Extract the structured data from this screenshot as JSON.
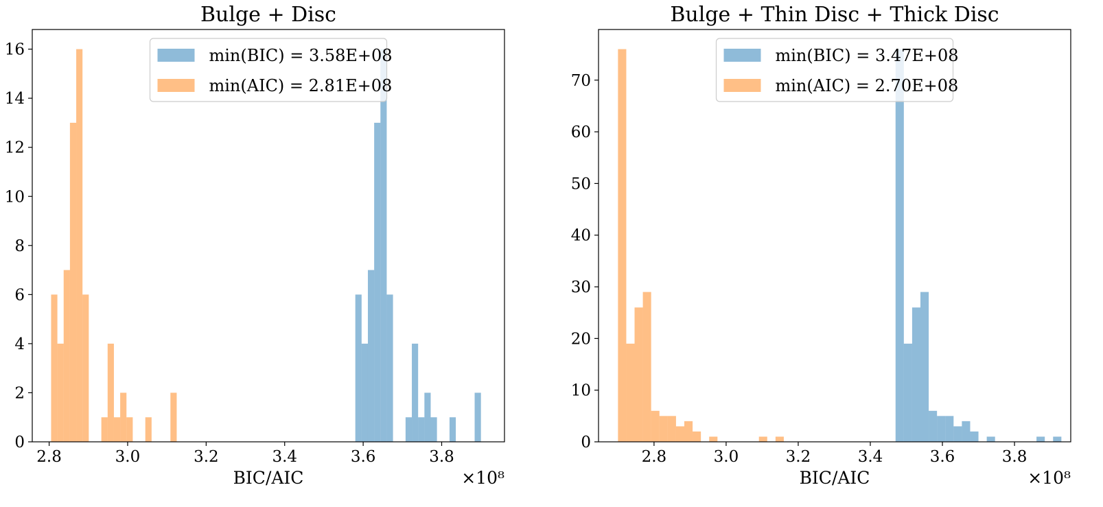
{
  "chart_data": [
    {
      "type": "bar",
      "title": "Bulge + Disc",
      "xlabel": "BIC/AIC",
      "ylabel": "",
      "x_scale_label": "×10⁸",
      "xlim": [
        2.757,
        3.96
      ],
      "ylim": [
        0,
        16.8
      ],
      "xticks": [
        2.8,
        3.0,
        3.2,
        3.4,
        3.6,
        3.8
      ],
      "xtick_labels": [
        "2.8",
        "3.0",
        "3.2",
        "3.4",
        "3.6",
        "3.8"
      ],
      "yticks": [
        0,
        2,
        4,
        6,
        8,
        10,
        12,
        14,
        16
      ],
      "ytick_labels": [
        "0",
        "2",
        "4",
        "6",
        "8",
        "10",
        "12",
        "14",
        "16"
      ],
      "legend_position": "top-center",
      "series": [
        {
          "name": "min(BIC) = 3.58E+08",
          "color": "#1f77b4",
          "opacity": 0.5,
          "bins": [
            {
              "x0": 3.58,
              "x1": 3.596,
              "count": 6
            },
            {
              "x0": 3.596,
              "x1": 3.612,
              "count": 4
            },
            {
              "x0": 3.612,
              "x1": 3.628,
              "count": 7
            },
            {
              "x0": 3.628,
              "x1": 3.644,
              "count": 13
            },
            {
              "x0": 3.644,
              "x1": 3.66,
              "count": 16
            },
            {
              "x0": 3.66,
              "x1": 3.676,
              "count": 6
            },
            {
              "x0": 3.708,
              "x1": 3.724,
              "count": 1
            },
            {
              "x0": 3.724,
              "x1": 3.74,
              "count": 4
            },
            {
              "x0": 3.74,
              "x1": 3.756,
              "count": 1
            },
            {
              "x0": 3.756,
              "x1": 3.772,
              "count": 2
            },
            {
              "x0": 3.772,
              "x1": 3.788,
              "count": 1
            },
            {
              "x0": 3.82,
              "x1": 3.836,
              "count": 1
            },
            {
              "x0": 3.884,
              "x1": 3.9,
              "count": 2
            }
          ]
        },
        {
          "name": "min(AIC) = 2.81E+08",
          "color": "#ff7f0e",
          "opacity": 0.5,
          "bins": [
            {
              "x0": 2.805,
              "x1": 2.821,
              "count": 6
            },
            {
              "x0": 2.821,
              "x1": 2.837,
              "count": 4
            },
            {
              "x0": 2.837,
              "x1": 2.853,
              "count": 7
            },
            {
              "x0": 2.853,
              "x1": 2.869,
              "count": 13
            },
            {
              "x0": 2.869,
              "x1": 2.885,
              "count": 16
            },
            {
              "x0": 2.885,
              "x1": 2.901,
              "count": 6
            },
            {
              "x0": 2.933,
              "x1": 2.949,
              "count": 1
            },
            {
              "x0": 2.949,
              "x1": 2.965,
              "count": 4
            },
            {
              "x0": 2.965,
              "x1": 2.981,
              "count": 1
            },
            {
              "x0": 2.981,
              "x1": 2.997,
              "count": 2
            },
            {
              "x0": 2.997,
              "x1": 3.013,
              "count": 1
            },
            {
              "x0": 3.045,
              "x1": 3.061,
              "count": 1
            },
            {
              "x0": 3.109,
              "x1": 3.125,
              "count": 2
            }
          ]
        }
      ]
    },
    {
      "type": "bar",
      "title": "Bulge + Thin Disc + Thick Disc",
      "xlabel": "BIC/AIC",
      "ylabel": "",
      "x_scale_label": "×10⁸",
      "xlim": [
        2.646,
        3.956
      ],
      "ylim": [
        0,
        79.8
      ],
      "xticks": [
        2.8,
        3.0,
        3.2,
        3.4,
        3.6,
        3.8
      ],
      "xtick_labels": [
        "2.8",
        "3.0",
        "3.2",
        "3.4",
        "3.6",
        "3.8"
      ],
      "yticks": [
        0,
        10,
        20,
        30,
        40,
        50,
        60,
        70
      ],
      "ytick_labels": [
        "0",
        "10",
        "20",
        "30",
        "40",
        "50",
        "60",
        "70"
      ],
      "legend_position": "top-center",
      "series": [
        {
          "name": "min(BIC) = 3.47E+08",
          "color": "#1f77b4",
          "opacity": 0.5,
          "bins": [
            {
              "x0": 3.47,
              "x1": 3.493,
              "count": 76
            },
            {
              "x0": 3.493,
              "x1": 3.516,
              "count": 19
            },
            {
              "x0": 3.516,
              "x1": 3.539,
              "count": 26
            },
            {
              "x0": 3.539,
              "x1": 3.562,
              "count": 29
            },
            {
              "x0": 3.562,
              "x1": 3.585,
              "count": 6
            },
            {
              "x0": 3.585,
              "x1": 3.608,
              "count": 5
            },
            {
              "x0": 3.608,
              "x1": 3.631,
              "count": 5
            },
            {
              "x0": 3.631,
              "x1": 3.654,
              "count": 3
            },
            {
              "x0": 3.654,
              "x1": 3.677,
              "count": 4
            },
            {
              "x0": 3.677,
              "x1": 3.7,
              "count": 2
            },
            {
              "x0": 3.723,
              "x1": 3.746,
              "count": 1
            },
            {
              "x0": 3.861,
              "x1": 3.884,
              "count": 1
            },
            {
              "x0": 3.907,
              "x1": 3.93,
              "count": 1
            }
          ]
        },
        {
          "name": "min(AIC) = 2.70E+08",
          "color": "#ff7f0e",
          "opacity": 0.5,
          "bins": [
            {
              "x0": 2.7,
              "x1": 2.723,
              "count": 76
            },
            {
              "x0": 2.723,
              "x1": 2.746,
              "count": 19
            },
            {
              "x0": 2.746,
              "x1": 2.769,
              "count": 26
            },
            {
              "x0": 2.769,
              "x1": 2.792,
              "count": 29
            },
            {
              "x0": 2.792,
              "x1": 2.815,
              "count": 6
            },
            {
              "x0": 2.815,
              "x1": 2.838,
              "count": 5
            },
            {
              "x0": 2.838,
              "x1": 2.861,
              "count": 5
            },
            {
              "x0": 2.861,
              "x1": 2.884,
              "count": 3
            },
            {
              "x0": 2.884,
              "x1": 2.907,
              "count": 4
            },
            {
              "x0": 2.907,
              "x1": 2.93,
              "count": 2
            },
            {
              "x0": 2.953,
              "x1": 2.976,
              "count": 1
            },
            {
              "x0": 3.091,
              "x1": 3.114,
              "count": 1
            },
            {
              "x0": 3.137,
              "x1": 3.16,
              "count": 1
            }
          ]
        }
      ]
    }
  ]
}
